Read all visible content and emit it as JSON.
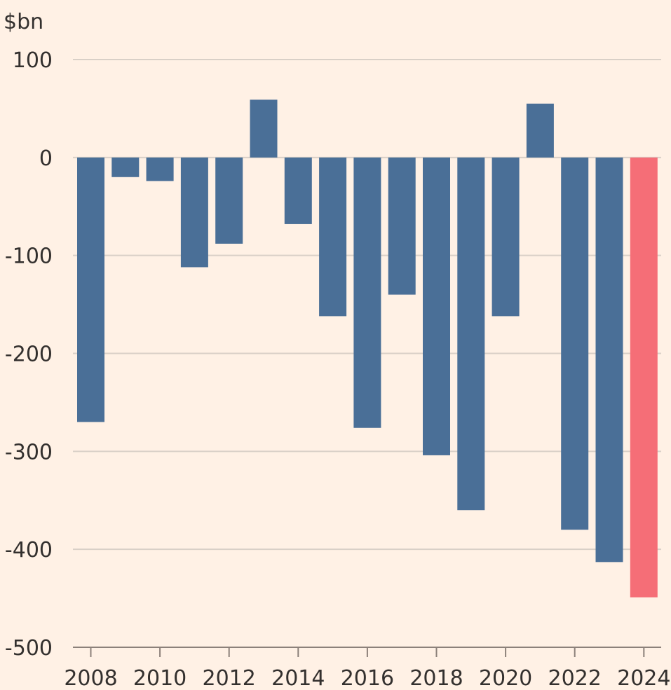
{
  "chart_data": {
    "type": "bar",
    "title": "",
    "xlabel": "",
    "ylabel": "$bn",
    "ylim": [
      -500,
      100
    ],
    "yticks": [
      100,
      0,
      -100,
      -200,
      -300,
      -400,
      -500
    ],
    "ytick_labels": [
      "100",
      "0",
      "-100",
      "-200",
      "-300",
      "-400",
      "-500"
    ],
    "xtick_labels": [
      "2008",
      "2010",
      "2012",
      "2014",
      "2016",
      "2018",
      "2020",
      "2022",
      "2024"
    ],
    "categories": [
      "2008",
      "2009",
      "2010",
      "2011",
      "2012",
      "2013",
      "2014",
      "2015",
      "2016",
      "2017",
      "2018",
      "2019",
      "2020",
      "2021",
      "2022",
      "2023",
      "2024"
    ],
    "values": [
      -270,
      -20,
      -24,
      -112,
      -88,
      59,
      -68,
      -162,
      -276,
      -140,
      -304,
      -360,
      -162,
      55,
      -380,
      -413,
      -449
    ],
    "grid": true,
    "legend": "none",
    "colors": {
      "background": "#fff1e5",
      "bar": "#4a6f97",
      "highlight": "#f56e77",
      "grid": "#d9d0c7",
      "axis": "#8c817a",
      "text": "#33302e"
    },
    "highlight_category": "2024"
  }
}
